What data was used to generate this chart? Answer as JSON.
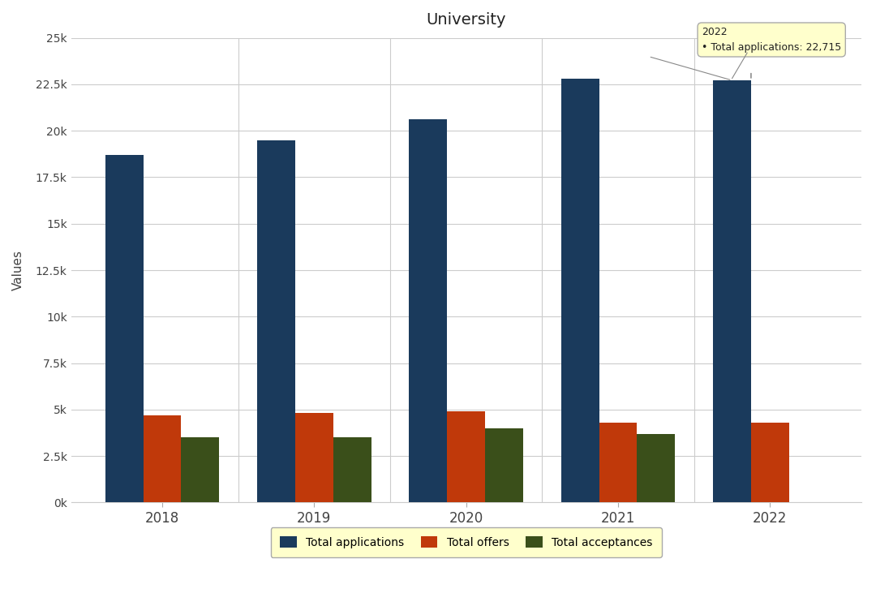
{
  "title": "University",
  "years": [
    2018,
    2019,
    2020,
    2021,
    2022
  ],
  "total_applications": [
    18700,
    19500,
    20600,
    22800,
    22715
  ],
  "total_offers": [
    4700,
    4800,
    4900,
    4300,
    4300
  ],
  "total_acceptances": [
    3500,
    3500,
    4000,
    3700,
    0
  ],
  "colors": {
    "applications": "#1a3a5c",
    "offers": "#c0390a",
    "acceptances": "#3a4f1a"
  },
  "ylabel": "Values",
  "ylim": [
    0,
    25000
  ],
  "yticks": [
    0,
    2500,
    5000,
    7500,
    10000,
    12500,
    15000,
    17500,
    20000,
    22500,
    25000
  ],
  "ytick_labels": [
    "0k",
    "2.5k",
    "5k",
    "7.5k",
    "10k",
    "12.5k",
    "15k",
    "17.5k",
    "20k",
    "22.5k",
    "25k"
  ],
  "legend_labels": [
    "Total applications",
    "Total offers",
    "Total acceptances"
  ],
  "tooltip_year": "2022",
  "tooltip_label": "Total applications:",
  "tooltip_value": "22,715",
  "background_color": "#ffffff",
  "bar_width": 0.25,
  "group_width": 0.85
}
